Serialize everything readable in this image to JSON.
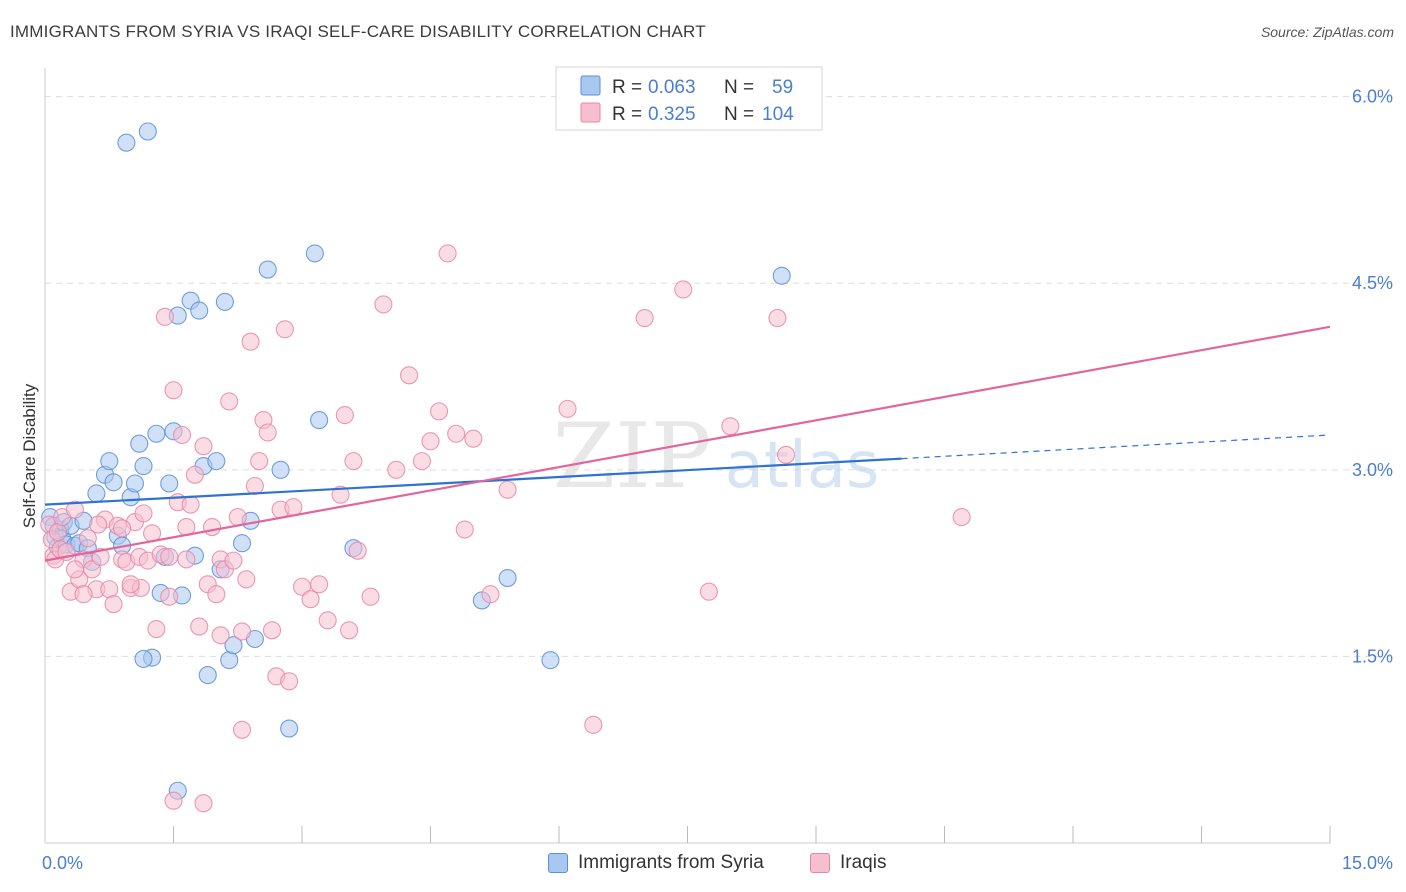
{
  "header": {
    "title": "IMMIGRANTS FROM SYRIA VS IRAQI SELF-CARE DISABILITY CORRELATION CHART",
    "source": "Source: ZipAtlas.com"
  },
  "watermark": {
    "zip": "ZIP",
    "atlas": "atlas"
  },
  "legend_top": {
    "rows": [
      {
        "r_label": "R =",
        "r_value": "0.063",
        "n_label": "N =",
        "n_value": "59"
      },
      {
        "r_label": "R =",
        "r_value": "0.325",
        "n_label": "N =",
        "n_value": "104"
      }
    ]
  },
  "legend_bottom": {
    "items": [
      {
        "label": "Immigrants from Syria"
      },
      {
        "label": "Iraqis"
      }
    ]
  },
  "colors": {
    "syria_fill": "#a9c8f0",
    "syria_stroke": "#5b8fd6",
    "syria_line": "#2f72cf",
    "iraq_fill": "#f6bfd0",
    "iraq_stroke": "#e787a8",
    "iraq_line": "#e2669a",
    "tick_label": "#4a7fd0",
    "grid": "#dddddd"
  },
  "chart_data": {
    "type": "scatter",
    "title": "IMMIGRANTS FROM SYRIA VS IRAQI SELF-CARE DISABILITY CORRELATION CHART",
    "xlabel": "",
    "ylabel": "Self-Care Disability",
    "xlim": [
      0,
      15
    ],
    "ylim": [
      0,
      6.15
    ],
    "x_tick_labels": [
      "0.0%",
      "15.0%"
    ],
    "y_ticks": [
      1.5,
      3.0,
      4.5,
      6.0
    ],
    "y_tick_labels": [
      "1.5%",
      "3.0%",
      "4.5%",
      "6.0%"
    ],
    "grid": true,
    "legend_position": "top-center",
    "series": [
      {
        "name": "Immigrants from Syria",
        "R": 0.063,
        "N": 59,
        "trend": {
          "x0": 0.0,
          "y0": 2.72,
          "x1": 10.0,
          "y1": 3.09,
          "dash_x1": 15.0,
          "dash_y1": 3.28
        },
        "points": [
          [
            0.06,
            2.62
          ],
          [
            0.1,
            2.55
          ],
          [
            0.12,
            2.46
          ],
          [
            0.15,
            2.38
          ],
          [
            0.18,
            2.52
          ],
          [
            0.2,
            2.45
          ],
          [
            0.22,
            2.58
          ],
          [
            0.25,
            2.4
          ],
          [
            0.3,
            2.55
          ],
          [
            0.35,
            2.39
          ],
          [
            0.4,
            2.41
          ],
          [
            0.45,
            2.59
          ],
          [
            0.5,
            2.37
          ],
          [
            0.55,
            2.26
          ],
          [
            0.6,
            2.81
          ],
          [
            0.7,
            2.96
          ],
          [
            0.75,
            3.07
          ],
          [
            0.8,
            2.9
          ],
          [
            0.85,
            2.47
          ],
          [
            0.9,
            2.39
          ],
          [
            1.0,
            2.78
          ],
          [
            1.05,
            2.89
          ],
          [
            1.1,
            3.21
          ],
          [
            1.15,
            3.03
          ],
          [
            0.95,
            5.63
          ],
          [
            1.2,
            5.72
          ],
          [
            1.25,
            1.49
          ],
          [
            1.3,
            3.29
          ],
          [
            1.35,
            2.01
          ],
          [
            1.4,
            2.3
          ],
          [
            1.45,
            2.89
          ],
          [
            1.5,
            3.31
          ],
          [
            1.55,
            4.24
          ],
          [
            1.6,
            1.99
          ],
          [
            1.7,
            4.36
          ],
          [
            1.75,
            2.31
          ],
          [
            1.8,
            4.28
          ],
          [
            1.85,
            3.03
          ],
          [
            1.9,
            1.35
          ],
          [
            2.0,
            3.07
          ],
          [
            2.05,
            2.2
          ],
          [
            2.1,
            4.35
          ],
          [
            2.15,
            1.47
          ],
          [
            2.2,
            1.59
          ],
          [
            2.3,
            2.41
          ],
          [
            2.4,
            2.59
          ],
          [
            2.45,
            1.64
          ],
          [
            2.6,
            4.61
          ],
          [
            2.75,
            3.0
          ],
          [
            2.85,
            0.92
          ],
          [
            3.15,
            4.74
          ],
          [
            3.2,
            3.4
          ],
          [
            3.6,
            2.37
          ],
          [
            5.1,
            1.95
          ],
          [
            5.4,
            2.13
          ],
          [
            5.9,
            1.47
          ],
          [
            1.55,
            0.42
          ],
          [
            8.6,
            4.56
          ],
          [
            1.15,
            1.48
          ]
        ]
      },
      {
        "name": "Iraqis",
        "R": 0.325,
        "N": 104,
        "trend": {
          "x0": 0.0,
          "y0": 2.27,
          "x1": 15.0,
          "y1": 4.15
        },
        "points": [
          [
            0.05,
            2.56
          ],
          [
            0.08,
            2.44
          ],
          [
            0.1,
            2.31
          ],
          [
            0.12,
            2.28
          ],
          [
            0.15,
            2.5
          ],
          [
            0.18,
            2.36
          ],
          [
            0.2,
            2.62
          ],
          [
            0.25,
            2.34
          ],
          [
            0.3,
            2.02
          ],
          [
            0.35,
            2.68
          ],
          [
            0.4,
            2.12
          ],
          [
            0.45,
            2.28
          ],
          [
            0.5,
            2.45
          ],
          [
            0.55,
            2.2
          ],
          [
            0.6,
            2.04
          ],
          [
            0.65,
            2.3
          ],
          [
            0.7,
            2.6
          ],
          [
            0.75,
            2.04
          ],
          [
            0.8,
            1.92
          ],
          [
            0.85,
            2.55
          ],
          [
            0.9,
            2.28
          ],
          [
            0.95,
            2.26
          ],
          [
            1.0,
            2.05
          ],
          [
            1.05,
            2.58
          ],
          [
            1.1,
            2.3
          ],
          [
            1.15,
            2.65
          ],
          [
            1.2,
            2.27
          ],
          [
            1.25,
            2.49
          ],
          [
            1.3,
            1.72
          ],
          [
            1.35,
            2.32
          ],
          [
            1.4,
            4.23
          ],
          [
            1.45,
            2.3
          ],
          [
            1.5,
            3.64
          ],
          [
            1.55,
            2.74
          ],
          [
            1.6,
            3.28
          ],
          [
            1.65,
            2.54
          ],
          [
            1.7,
            2.72
          ],
          [
            1.75,
            2.96
          ],
          [
            1.8,
            1.74
          ],
          [
            1.85,
            3.19
          ],
          [
            1.9,
            2.08
          ],
          [
            1.95,
            2.54
          ],
          [
            2.0,
            2.0
          ],
          [
            2.05,
            2.28
          ],
          [
            2.1,
            2.2
          ],
          [
            2.15,
            3.55
          ],
          [
            2.2,
            2.27
          ],
          [
            2.25,
            2.62
          ],
          [
            2.3,
            1.7
          ],
          [
            2.35,
            2.12
          ],
          [
            2.4,
            4.03
          ],
          [
            2.45,
            2.87
          ],
          [
            2.5,
            3.07
          ],
          [
            2.55,
            3.4
          ],
          [
            2.6,
            3.3
          ],
          [
            2.65,
            1.71
          ],
          [
            2.7,
            1.34
          ],
          [
            2.75,
            2.68
          ],
          [
            2.8,
            4.13
          ],
          [
            2.85,
            1.3
          ],
          [
            2.9,
            2.7
          ],
          [
            3.0,
            2.06
          ],
          [
            3.1,
            1.96
          ],
          [
            3.2,
            2.08
          ],
          [
            3.3,
            1.79
          ],
          [
            3.45,
            2.8
          ],
          [
            3.5,
            3.44
          ],
          [
            3.55,
            1.71
          ],
          [
            3.6,
            3.07
          ],
          [
            3.65,
            2.35
          ],
          [
            3.8,
            1.98
          ],
          [
            3.95,
            4.33
          ],
          [
            4.1,
            3.0
          ],
          [
            4.25,
            3.76
          ],
          [
            4.4,
            3.07
          ],
          [
            4.5,
            3.23
          ],
          [
            4.6,
            3.47
          ],
          [
            4.7,
            4.74
          ],
          [
            4.8,
            3.29
          ],
          [
            4.9,
            2.52
          ],
          [
            5.0,
            3.25
          ],
          [
            5.2,
            2.0
          ],
          [
            5.4,
            2.84
          ],
          [
            6.1,
            3.49
          ],
          [
            6.4,
            0.95
          ],
          [
            7.0,
            4.22
          ],
          [
            7.45,
            4.45
          ],
          [
            7.75,
            2.02
          ],
          [
            8.0,
            3.35
          ],
          [
            8.55,
            4.22
          ],
          [
            8.65,
            3.12
          ],
          [
            10.7,
            2.62
          ],
          [
            1.5,
            0.34
          ],
          [
            1.85,
            0.32
          ],
          [
            2.3,
            0.91
          ],
          [
            0.62,
            2.56
          ],
          [
            1.12,
            2.05
          ],
          [
            0.45,
            2.0
          ],
          [
            0.9,
            2.53
          ],
          [
            1.65,
            2.28
          ],
          [
            2.05,
            1.67
          ],
          [
            0.35,
            2.2
          ],
          [
            1.45,
            1.98
          ],
          [
            1.0,
            2.08
          ]
        ]
      }
    ]
  }
}
